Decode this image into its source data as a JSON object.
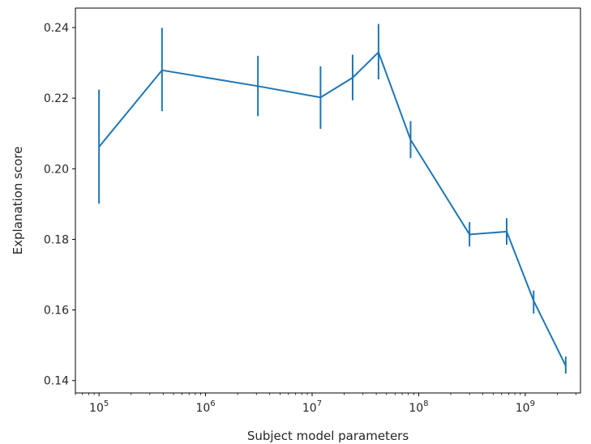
{
  "chart_data": {
    "type": "line",
    "xlabel": "Subject model parameters",
    "ylabel": "Explanation score",
    "xscale": "log",
    "xlim": [
      60000,
      3300000000
    ],
    "ylim": [
      0.1365,
      0.2455
    ],
    "grid": false,
    "line_color": "#1f77b4",
    "y_ticks": [
      {
        "value": 0.14,
        "label": "0.14"
      },
      {
        "value": 0.16,
        "label": "0.16"
      },
      {
        "value": 0.18,
        "label": "0.18"
      },
      {
        "value": 0.2,
        "label": "0.20"
      },
      {
        "value": 0.22,
        "label": "0.22"
      },
      {
        "value": 0.24,
        "label": "0.24"
      }
    ],
    "x_ticks": [
      {
        "value": 100000,
        "base": "10",
        "exp": "5"
      },
      {
        "value": 1000000,
        "base": "10",
        "exp": "6"
      },
      {
        "value": 10000000,
        "base": "10",
        "exp": "7"
      },
      {
        "value": 100000000,
        "base": "10",
        "exp": "8"
      },
      {
        "value": 1000000000,
        "base": "10",
        "exp": "9"
      }
    ],
    "series": [
      {
        "points": [
          {
            "x": 100000,
            "y": 0.2062,
            "err_low": 0.1901,
            "err_high": 0.2224
          },
          {
            "x": 390000,
            "y": 0.2279,
            "err_low": 0.2163,
            "err_high": 0.2399
          },
          {
            "x": 3100000,
            "y": 0.2234,
            "err_low": 0.2149,
            "err_high": 0.232
          },
          {
            "x": 12000000,
            "y": 0.2202,
            "err_low": 0.2113,
            "err_high": 0.229
          },
          {
            "x": 24000000,
            "y": 0.2258,
            "err_low": 0.2194,
            "err_high": 0.2323
          },
          {
            "x": 42000000,
            "y": 0.233,
            "err_low": 0.2253,
            "err_high": 0.241
          },
          {
            "x": 84000000,
            "y": 0.2082,
            "err_low": 0.203,
            "err_high": 0.2135
          },
          {
            "x": 300000000,
            "y": 0.1814,
            "err_low": 0.178,
            "err_high": 0.1849
          },
          {
            "x": 670000000,
            "y": 0.1822,
            "err_low": 0.1785,
            "err_high": 0.186
          },
          {
            "x": 1200000000,
            "y": 0.1626,
            "err_low": 0.159,
            "err_high": 0.1655
          },
          {
            "x": 2400000000,
            "y": 0.1442,
            "err_low": 0.142,
            "err_high": 0.1468
          }
        ]
      }
    ]
  }
}
